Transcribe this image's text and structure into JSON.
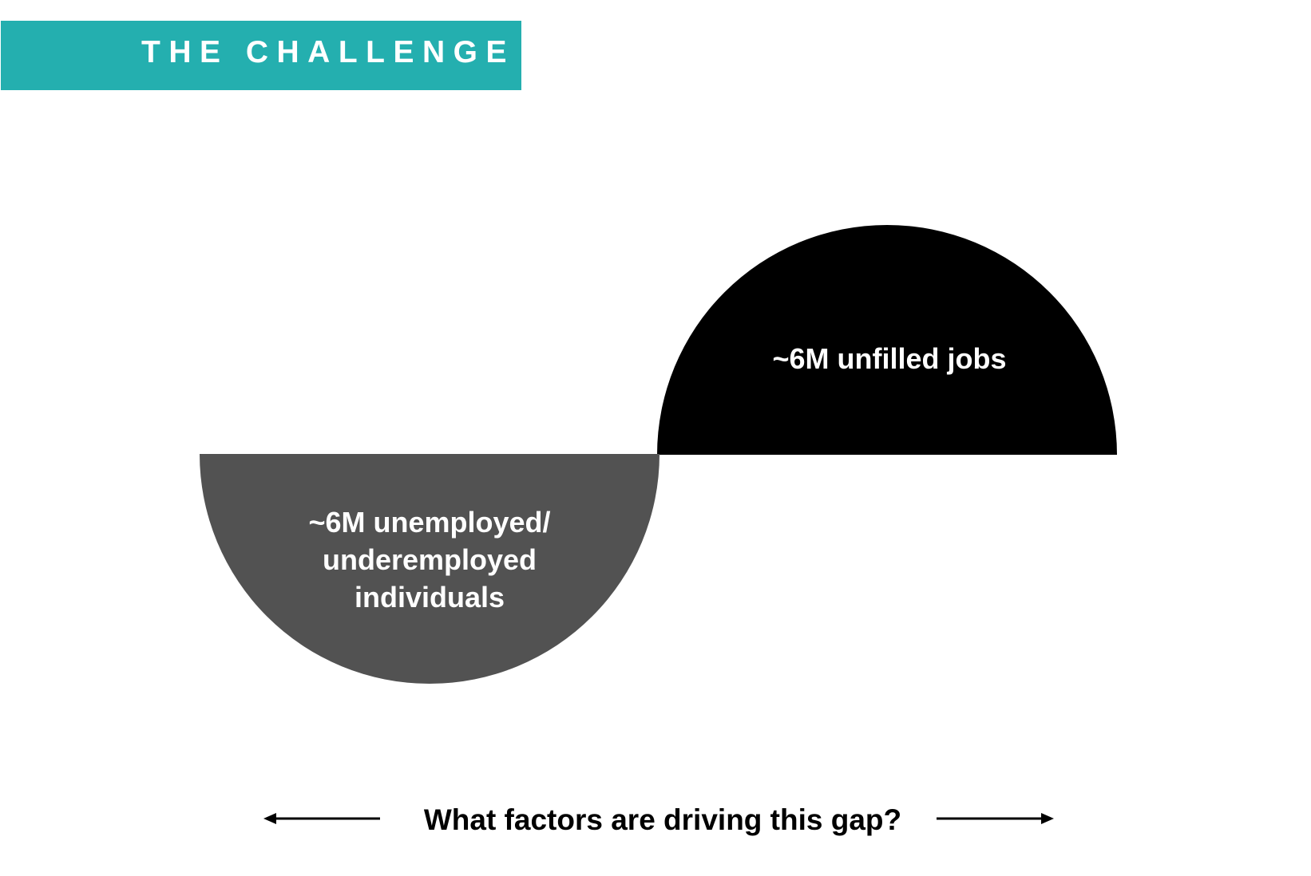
{
  "header": {
    "title": "THE CHALLENGE",
    "accent_color": "#24afaf"
  },
  "diagram": {
    "supply": {
      "label": "~6M unfilled jobs",
      "color": "#000000"
    },
    "demand": {
      "label_lines": [
        "~6M unemployed/",
        "underemployed",
        "individuals"
      ],
      "color": "#525252"
    },
    "question": "What factors are driving this gap?",
    "arrows": [
      "arrow-left-icon",
      "arrow-right-icon"
    ]
  }
}
